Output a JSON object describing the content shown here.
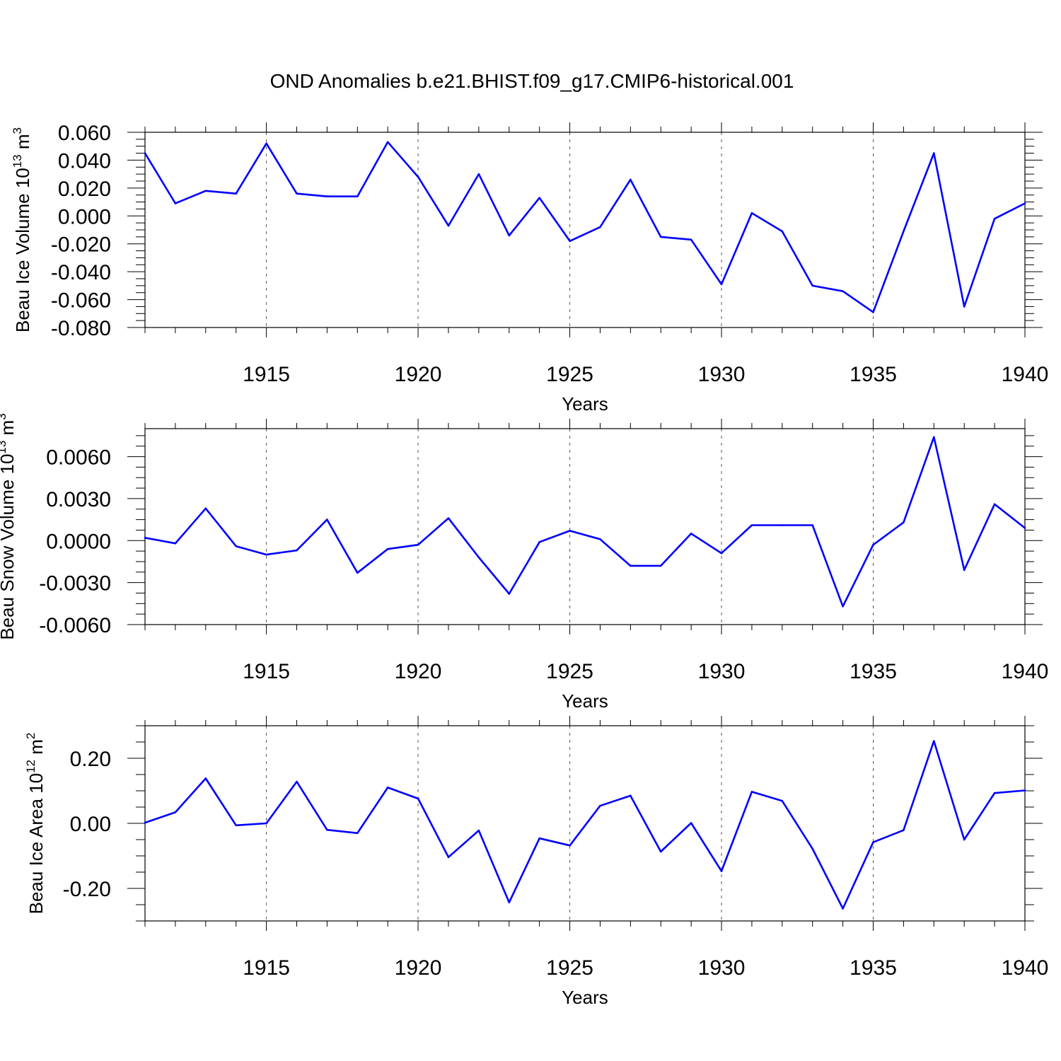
{
  "title": "OND Anomalies b.e21.BHIST.f09_g17.CMIP6-historical.001",
  "line_color": "#0000ff",
  "chart_data": [
    {
      "type": "line",
      "xlabel": "Years",
      "ylabel": {
        "main": "Beau Ice Volume 10",
        "exp": "13",
        "unit": " m",
        "unit_exp": "3"
      },
      "xlim": [
        1911,
        1940
      ],
      "ylim": [
        -0.08,
        0.06
      ],
      "xticks": [
        1915,
        1920,
        1925,
        1930,
        1935,
        1940
      ],
      "xtick_labels": [
        "1915",
        "1920",
        "1925",
        "1930",
        "1935",
        "1940"
      ],
      "yticks": [
        0.06,
        0.04,
        0.02,
        0.0,
        -0.02,
        -0.04,
        -0.06,
        -0.08
      ],
      "ytick_labels": [
        "0.060",
        "0.040",
        "0.020",
        "0.000",
        "-0.020",
        "-0.040",
        "-0.060",
        "-0.080"
      ],
      "grid": "vertical dashed at major x ticks",
      "x": [
        1911,
        1912,
        1913,
        1914,
        1915,
        1916,
        1917,
        1918,
        1919,
        1920,
        1921,
        1922,
        1923,
        1924,
        1925,
        1926,
        1927,
        1928,
        1929,
        1930,
        1931,
        1932,
        1933,
        1934,
        1935,
        1936,
        1937,
        1938,
        1939,
        1940
      ],
      "values": [
        0.045,
        0.009,
        0.018,
        0.016,
        0.052,
        0.016,
        0.014,
        0.014,
        0.053,
        0.028,
        -0.007,
        0.03,
        -0.014,
        0.013,
        -0.018,
        -0.008,
        0.026,
        -0.015,
        -0.017,
        -0.049,
        0.002,
        -0.011,
        -0.05,
        -0.054,
        -0.069,
        -0.011,
        0.045,
        -0.065,
        -0.002,
        0.009
      ]
    },
    {
      "type": "line",
      "xlabel": "Years",
      "ylabel": {
        "main": "Beau Snow Volume 10",
        "exp": "13",
        "unit": " m",
        "unit_exp": "3"
      },
      "xlim": [
        1911,
        1940
      ],
      "ylim": [
        -0.006,
        0.008
      ],
      "xticks": [
        1915,
        1920,
        1925,
        1930,
        1935,
        1940
      ],
      "xtick_labels": [
        "1915",
        "1920",
        "1925",
        "1930",
        "1935",
        "1940"
      ],
      "yticks": [
        0.006,
        0.003,
        0.0,
        -0.003,
        -0.006
      ],
      "ytick_labels": [
        "0.0060",
        "0.0030",
        "0.0000",
        "-0.0030",
        "-0.0060"
      ],
      "grid": "vertical dashed at major x ticks",
      "x": [
        1911,
        1912,
        1913,
        1914,
        1915,
        1916,
        1917,
        1918,
        1919,
        1920,
        1921,
        1922,
        1923,
        1924,
        1925,
        1926,
        1927,
        1928,
        1929,
        1930,
        1931,
        1932,
        1933,
        1934,
        1935,
        1936,
        1937,
        1938,
        1939,
        1940
      ],
      "values": [
        0.0002,
        -0.0002,
        0.0023,
        -0.0004,
        -0.001,
        -0.0007,
        0.0015,
        -0.0023,
        -0.0006,
        -0.0003,
        0.0016,
        -0.0012,
        -0.0038,
        -0.0001,
        0.0007,
        0.0001,
        -0.0018,
        -0.0018,
        0.0005,
        -0.0009,
        0.0011,
        0.0011,
        0.0011,
        -0.0047,
        -0.0003,
        0.0013,
        0.0074,
        -0.0021,
        0.0026,
        0.0009
      ]
    },
    {
      "type": "line",
      "xlabel": "Years",
      "ylabel": {
        "main": "Beau Ice Area 10",
        "exp": "12",
        "unit": " m",
        "unit_exp": "2"
      },
      "xlim": [
        1911,
        1940
      ],
      "ylim": [
        -0.3,
        0.3
      ],
      "xticks": [
        1915,
        1920,
        1925,
        1930,
        1935,
        1940
      ],
      "xtick_labels": [
        "1915",
        "1920",
        "1925",
        "1930",
        "1935",
        "1940"
      ],
      "yticks": [
        0.2,
        0.0,
        -0.2
      ],
      "ytick_labels": [
        "0.20",
        "0.00",
        "-0.20"
      ],
      "grid": "vertical dashed at major x ticks",
      "x": [
        1911,
        1912,
        1913,
        1914,
        1915,
        1916,
        1917,
        1918,
        1919,
        1920,
        1921,
        1922,
        1923,
        1924,
        1925,
        1926,
        1927,
        1928,
        1929,
        1930,
        1931,
        1932,
        1933,
        1934,
        1935,
        1936,
        1937,
        1938,
        1939,
        1940
      ],
      "values": [
        0.002,
        0.034,
        0.138,
        -0.006,
        0.0,
        0.128,
        -0.02,
        -0.03,
        0.11,
        0.076,
        -0.104,
        -0.022,
        -0.243,
        -0.046,
        -0.068,
        0.054,
        0.085,
        -0.087,
        0.001,
        -0.147,
        0.097,
        0.069,
        -0.078,
        -0.262,
        -0.058,
        -0.021,
        0.253,
        -0.05,
        0.093,
        0.101
      ]
    }
  ]
}
